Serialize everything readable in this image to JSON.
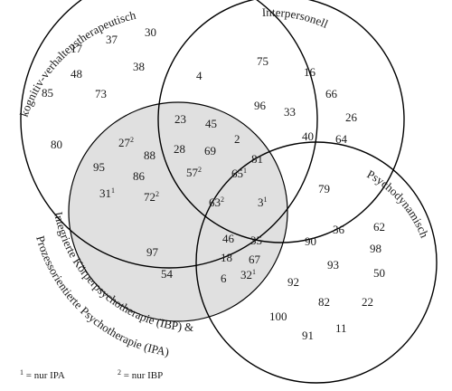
{
  "colors": {
    "shaded_circle_fill": "#e0e0e0",
    "stroke": "#000000"
  },
  "labels": {
    "kognitiv": "kognitiv-verhaltenstherapeutisch",
    "interpersonell": "Interpersonell",
    "psychodynamisch": "Psychodynamisch",
    "integriert": "Integrierte Körperpsychotherapie (IBP) &",
    "prozess": "Prozessorientierte Psychotherapie (IPA)"
  },
  "footnotes": {
    "f1": {
      "mark": "1",
      "text": " = nur IPA"
    },
    "f2": {
      "mark": "2",
      "text": " = nur IBP"
    }
  },
  "numbers": [
    {
      "t": "17"
    },
    {
      "t": "37"
    },
    {
      "t": "30"
    },
    {
      "t": "48"
    },
    {
      "t": "38"
    },
    {
      "t": "85"
    },
    {
      "t": "73"
    },
    {
      "t": "80"
    },
    {
      "t": "75"
    },
    {
      "t": "16"
    },
    {
      "t": "66"
    },
    {
      "t": "96"
    },
    {
      "t": "33"
    },
    {
      "t": "26"
    },
    {
      "t": "40"
    },
    {
      "t": "64"
    },
    {
      "t": "4"
    },
    {
      "t": "23"
    },
    {
      "t": "45"
    },
    {
      "t": "28"
    },
    {
      "t": "69"
    },
    {
      "t": "57",
      "s": "2"
    },
    {
      "t": "2"
    },
    {
      "t": "81"
    },
    {
      "t": "65",
      "s": "1"
    },
    {
      "t": "27",
      "s": "2"
    },
    {
      "t": "88"
    },
    {
      "t": "95"
    },
    {
      "t": "86"
    },
    {
      "t": "31",
      "s": "1"
    },
    {
      "t": "72",
      "s": "2"
    },
    {
      "t": "63",
      "s": "2"
    },
    {
      "t": "3",
      "s": "1"
    },
    {
      "t": "79"
    },
    {
      "t": "97"
    },
    {
      "t": "54"
    },
    {
      "t": "46"
    },
    {
      "t": "35"
    },
    {
      "t": "18"
    },
    {
      "t": "67"
    },
    {
      "t": "6"
    },
    {
      "t": "32",
      "s": "1"
    },
    {
      "t": "90"
    },
    {
      "t": "36"
    },
    {
      "t": "62"
    },
    {
      "t": "98"
    },
    {
      "t": "93"
    },
    {
      "t": "50"
    },
    {
      "t": "92"
    },
    {
      "t": "82"
    },
    {
      "t": "22"
    },
    {
      "t": "100"
    },
    {
      "t": "91"
    },
    {
      "t": "11"
    }
  ]
}
